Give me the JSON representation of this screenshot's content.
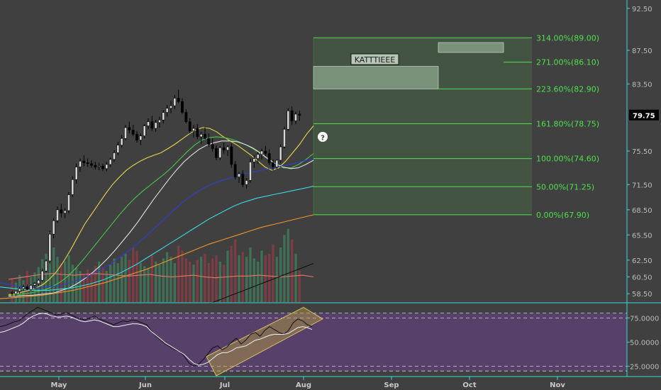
{
  "chart_data": [
    {
      "type": "candlestick",
      "symbol_note": "",
      "x_ticks": [
        "May",
        "Jun",
        "Jul",
        "Aug",
        "Sep",
        "Oct",
        "Nov"
      ],
      "y_ticks": [
        58.5,
        60.5,
        62.5,
        65.5,
        68.5,
        71.5,
        75.5,
        79.75,
        83.5,
        87.5,
        92.5
      ],
      "y_tick_labels": [
        "58.50",
        "60.50",
        "62.50",
        "65.50",
        "68.50",
        "71.50",
        "75.50",
        "79.75",
        "83.50",
        "87.50",
        "92.50"
      ],
      "ylim": [
        57.5,
        93.5
      ],
      "last_price": "79.75",
      "annotation": "KATTTIEEE",
      "fib_levels": [
        {
          "label": "314.00%(89.00)",
          "value": 89.0
        },
        {
          "label": "271.00%(86.10)",
          "value": 86.1
        },
        {
          "label": "223.60%(82.90)",
          "value": 82.9
        },
        {
          "label": "161.80%(78.75)",
          "value": 78.75
        },
        {
          "label": "100.00%(74.60)",
          "value": 74.6
        },
        {
          "label": "50.00%(71.25)",
          "value": 71.25
        },
        {
          "label": "0.00%(67.90)",
          "value": 67.9
        }
      ],
      "candles": [
        [
          1,
          58.6,
          58.9,
          58.2,
          58.5
        ],
        [
          2,
          58.5,
          58.9,
          58.2,
          58.8
        ],
        [
          3,
          58.8,
          59.3,
          58.5,
          59.1
        ],
        [
          4,
          59.1,
          59.6,
          58.8,
          59.3
        ],
        [
          5,
          59.3,
          59.6,
          58.9,
          59.0
        ],
        [
          6,
          59.0,
          59.6,
          58.8,
          59.5
        ],
        [
          7,
          59.5,
          59.9,
          59.1,
          59.7
        ],
        [
          8,
          59.7,
          60.3,
          59.4,
          60.1
        ],
        [
          9,
          60.1,
          61.5,
          59.9,
          61.2
        ],
        [
          10,
          61.2,
          62.6,
          61.0,
          62.4
        ],
        [
          11,
          62.4,
          66.0,
          62.1,
          65.6
        ],
        [
          12,
          65.6,
          67.5,
          65.1,
          67.2
        ],
        [
          13,
          67.2,
          68.9,
          66.9,
          68.5
        ],
        [
          14,
          68.5,
          69.2,
          67.6,
          68.1
        ],
        [
          15,
          68.1,
          68.7,
          67.5,
          68.4
        ],
        [
          16,
          68.4,
          70.6,
          68.1,
          70.3
        ],
        [
          17,
          70.3,
          72.5,
          70.0,
          72.1
        ],
        [
          18,
          72.1,
          74.0,
          71.6,
          73.6
        ],
        [
          19,
          73.6,
          74.6,
          73.0,
          74.3
        ],
        [
          20,
          74.3,
          75.0,
          73.7,
          74.1
        ],
        [
          21,
          74.1,
          74.6,
          73.6,
          74.0
        ],
        [
          22,
          74.0,
          74.4,
          73.5,
          73.8
        ],
        [
          23,
          73.8,
          74.2,
          73.3,
          73.6
        ],
        [
          24,
          73.6,
          74.1,
          73.2,
          73.7
        ],
        [
          25,
          73.7,
          74.0,
          73.1,
          73.4
        ],
        [
          26,
          73.4,
          74.2,
          73.1,
          73.9
        ],
        [
          27,
          73.9,
          74.7,
          73.6,
          74.5
        ],
        [
          28,
          74.5,
          75.6,
          74.2,
          75.3
        ],
        [
          29,
          75.3,
          76.6,
          75.0,
          76.2
        ],
        [
          30,
          76.2,
          77.4,
          75.9,
          77.0
        ],
        [
          31,
          77.0,
          78.6,
          76.8,
          78.3
        ],
        [
          32,
          78.3,
          79.0,
          77.6,
          78.0
        ],
        [
          33,
          78.0,
          78.6,
          77.3,
          77.5
        ],
        [
          34,
          77.5,
          77.9,
          76.5,
          76.8
        ],
        [
          35,
          76.8,
          77.6,
          76.2,
          77.3
        ],
        [
          36,
          77.3,
          78.7,
          77.0,
          78.5
        ],
        [
          37,
          78.5,
          79.4,
          78.1,
          79.0
        ],
        [
          38,
          79.0,
          79.7,
          77.9,
          78.2
        ],
        [
          39,
          78.2,
          79.2,
          77.8,
          78.9
        ],
        [
          40,
          78.9,
          79.6,
          78.3,
          79.2
        ],
        [
          41,
          79.2,
          80.4,
          78.8,
          80.1
        ],
        [
          42,
          80.1,
          81.0,
          79.6,
          80.6
        ],
        [
          43,
          80.6,
          81.5,
          80.0,
          80.9
        ],
        [
          44,
          80.9,
          82.2,
          80.5,
          81.8
        ],
        [
          45,
          81.8,
          82.8,
          81.2,
          81.4
        ],
        [
          46,
          81.4,
          81.8,
          79.9,
          80.1
        ],
        [
          47,
          80.1,
          80.5,
          78.8,
          79.0
        ],
        [
          48,
          79.0,
          79.4,
          77.6,
          77.9
        ],
        [
          49,
          77.9,
          78.6,
          77.1,
          78.2
        ],
        [
          50,
          78.2,
          78.7,
          76.9,
          77.2
        ],
        [
          51,
          77.2,
          77.8,
          76.3,
          77.5
        ],
        [
          52,
          77.5,
          78.3,
          76.9,
          77.0
        ],
        [
          53,
          77.0,
          77.6,
          76.0,
          76.3
        ],
        [
          54,
          76.3,
          77.0,
          75.4,
          75.8
        ],
        [
          55,
          75.8,
          76.2,
          74.4,
          74.7
        ],
        [
          56,
          74.7,
          76.1,
          74.4,
          75.9
        ],
        [
          57,
          75.9,
          76.5,
          75.2,
          75.6
        ],
        [
          58,
          75.6,
          76.2,
          74.9,
          76.0
        ],
        [
          59,
          76.0,
          76.4,
          73.5,
          73.9
        ],
        [
          60,
          73.9,
          74.3,
          72.1,
          72.4
        ],
        [
          61,
          72.4,
          73.0,
          71.7,
          72.8
        ],
        [
          62,
          72.8,
          73.2,
          71.2,
          71.5
        ],
        [
          63,
          71.5,
          72.3,
          71.0,
          72.0
        ],
        [
          64,
          72.0,
          74.6,
          71.7,
          74.2
        ],
        [
          65,
          74.2,
          75.0,
          73.5,
          74.6
        ],
        [
          66,
          74.6,
          75.4,
          74.0,
          75.1
        ],
        [
          67,
          75.1,
          75.8,
          74.5,
          75.5
        ],
        [
          68,
          75.5,
          76.1,
          74.9,
          75.2
        ],
        [
          69,
          75.2,
          75.7,
          73.8,
          74.1
        ],
        [
          70,
          74.1,
          74.5,
          73.2,
          73.6
        ],
        [
          71,
          73.6,
          74.5,
          73.3,
          74.4
        ],
        [
          72,
          74.4,
          76.3,
          74.1,
          76.0
        ],
        [
          73,
          76.0,
          78.4,
          75.8,
          78.1
        ],
        [
          74,
          78.1,
          80.6,
          77.9,
          80.3
        ],
        [
          75,
          80.3,
          80.8,
          78.6,
          79.1
        ],
        [
          76,
          79.1,
          80.2,
          78.7,
          79.9
        ],
        [
          77,
          79.9,
          80.3,
          79.1,
          79.75
        ]
      ],
      "moving_averages": [
        {
          "color": "#e8d84a",
          "values": [
            58.4,
            58.5,
            58.7,
            58.9,
            59.2,
            59.6,
            60.3,
            61.2,
            62.4,
            63.8,
            65.3,
            66.8,
            68.0,
            69.2,
            70.4,
            71.5,
            72.4,
            73.2,
            73.8,
            74.3,
            74.7,
            75.0,
            75.3,
            75.8,
            76.3,
            76.9,
            77.5,
            78.0,
            78.3,
            78.2,
            77.8,
            77.2,
            76.7,
            76.2,
            75.6,
            75.0,
            74.3,
            73.6,
            73.2,
            73.5,
            74.3,
            75.3,
            76.3,
            77.5,
            78.5
          ]
        },
        {
          "color": "#48c848",
          "values": [
            58.3,
            58.4,
            58.5,
            58.6,
            58.8,
            59.0,
            59.4,
            59.9,
            60.6,
            61.5,
            62.5,
            63.6,
            64.7,
            65.8,
            66.9,
            68.0,
            69.0,
            69.9,
            70.7,
            71.4,
            72.1,
            72.8,
            73.6,
            74.5,
            75.4,
            76.2,
            76.8,
            77.1,
            77.2,
            77.1,
            76.9,
            76.6,
            76.2,
            75.7,
            75.1,
            74.5,
            73.9,
            73.5,
            73.5,
            73.9,
            74.5,
            75.2
          ]
        },
        {
          "color": "#e0e0e0",
          "values": [
            58.2,
            58.2,
            58.3,
            58.3,
            58.4,
            58.5,
            58.6,
            58.9,
            59.2,
            59.7,
            60.3,
            61.0,
            61.8,
            62.7,
            63.7,
            64.8,
            65.9,
            67.1,
            68.4,
            69.7,
            70.9,
            72.1,
            73.2,
            74.2,
            75.0,
            75.7,
            76.2,
            76.5,
            76.7,
            76.7,
            76.6,
            76.3,
            75.9,
            75.3,
            74.6,
            74.0,
            73.6,
            73.4,
            73.5,
            73.9,
            74.4
          ]
        },
        {
          "color": "#2d3fd0",
          "values": [
            59.8,
            59.6,
            59.4,
            59.3,
            59.2,
            59.2,
            59.3,
            59.4,
            59.6,
            59.9,
            60.2,
            60.6,
            61.1,
            61.6,
            62.2,
            62.9,
            63.6,
            64.4,
            65.2,
            66.1,
            67.0,
            67.9,
            68.8,
            69.6,
            70.3,
            70.9,
            71.4,
            71.8,
            72.1,
            72.4,
            72.7,
            72.9,
            73.1,
            73.3,
            73.5,
            73.7,
            73.9,
            74.1,
            74.4,
            74.6
          ]
        },
        {
          "color": "#3ad8e0",
          "values": [
            59.3,
            59.2,
            59.1,
            59.0,
            58.9,
            58.9,
            58.9,
            59.0,
            59.1,
            59.2,
            59.4,
            59.6,
            59.9,
            60.2,
            60.6,
            61.0,
            61.5,
            62.0,
            62.6,
            63.2,
            63.8,
            64.4,
            65.0,
            65.6,
            66.2,
            66.8,
            67.4,
            67.9,
            68.4,
            68.9,
            69.3,
            69.6,
            69.9,
            70.1,
            70.3,
            70.5,
            70.7,
            70.9,
            71.1,
            71.3
          ]
        },
        {
          "color": "#f0962a",
          "values": [
            57.9,
            58.0,
            58.1,
            58.2,
            58.3,
            58.5,
            58.7,
            58.9,
            59.2,
            59.5,
            59.8,
            60.2,
            60.6,
            61.0,
            61.4,
            61.9,
            62.4,
            62.9,
            63.4,
            63.9,
            64.4,
            64.8,
            65.2,
            65.6,
            66.0,
            66.4,
            66.7,
            67.0,
            67.3,
            67.6,
            67.9
          ]
        },
        {
          "color": "#e6786a",
          "values": [
            60.2,
            60.4,
            60.6,
            60.8,
            60.9,
            60.8,
            60.7,
            60.8,
            60.9,
            60.8,
            60.7,
            60.6,
            60.7,
            60.8,
            60.6,
            60.5,
            60.6,
            60.7,
            60.5,
            60.4,
            60.5,
            60.6,
            60.6,
            60.7,
            60.6,
            60.5,
            60.6,
            60.7,
            60.5
          ]
        },
        {
          "color": "#111111",
          "values": [
            55.0,
            55.5,
            56.1,
            56.6,
            57.1,
            57.6,
            58.1,
            58.6,
            59.1,
            59.6,
            60.1,
            60.6,
            61.1,
            61.6,
            62.1
          ]
        }
      ],
      "volume": [
        0.3,
        0.25,
        0.35,
        0.28,
        0.4,
        0.32,
        0.38,
        0.45,
        0.55,
        0.62,
        0.9,
        0.7,
        0.58,
        0.5,
        0.52,
        0.6,
        0.48,
        0.44,
        0.4,
        0.36,
        0.42,
        0.38,
        0.46,
        0.52,
        0.44,
        0.4,
        0.48,
        0.56,
        0.5,
        0.58,
        0.62,
        0.54,
        0.7,
        0.66,
        0.5,
        0.46,
        0.44,
        0.6,
        0.52,
        0.48,
        0.56,
        0.64,
        0.58,
        0.5,
        0.72,
        0.66,
        0.56,
        0.52,
        0.48,
        0.54,
        0.58,
        0.62,
        0.5,
        0.56,
        0.6,
        0.52,
        0.48,
        0.66,
        0.72,
        0.8,
        0.6,
        0.64,
        0.58,
        0.7,
        0.56,
        0.52,
        0.66,
        0.6,
        0.62,
        0.74,
        0.58,
        0.7,
        0.86,
        0.94,
        0.8,
        0.62,
        0.4
      ]
    },
    {
      "type": "line",
      "y_ticks": [
        25,
        50,
        75
      ],
      "y_tick_labels": [
        "25.0000",
        "50.0000",
        "75.0000"
      ],
      "ylim": [
        15,
        90
      ],
      "overbought": 80,
      "oversold": 20,
      "series": [
        {
          "color": "#111111",
          "values": [
            66,
            67,
            69,
            71,
            72,
            76,
            80,
            83,
            86,
            84,
            82,
            80,
            78,
            79,
            81,
            78,
            76,
            74,
            73,
            75,
            77,
            74,
            72,
            70,
            68,
            70,
            72,
            71,
            73,
            72,
            70,
            68,
            62,
            56,
            52,
            48,
            45,
            42,
            40,
            35,
            28,
            25,
            27,
            32,
            38,
            44,
            46,
            42,
            45,
            50,
            54,
            48,
            52,
            58,
            60,
            56,
            62,
            66,
            63,
            60,
            58,
            62,
            70,
            74,
            72,
            68,
            66
          ]
        },
        {
          "color": "#f0f0f0",
          "values": [
            60,
            61,
            63,
            65,
            67,
            70,
            74,
            77,
            79,
            80,
            79,
            77,
            76,
            76,
            77,
            76,
            74,
            72,
            71,
            72,
            73,
            72,
            70,
            68,
            66,
            66,
            67,
            68,
            69,
            69,
            68,
            66,
            61,
            57,
            53,
            49,
            46,
            43,
            40,
            37,
            32,
            28,
            26,
            27,
            29,
            33,
            37,
            39,
            39,
            41,
            44,
            45,
            46,
            49,
            52,
            53,
            55,
            57,
            58,
            58,
            58,
            59,
            62,
            65,
            66,
            65,
            63
          ]
        }
      ]
    }
  ]
}
